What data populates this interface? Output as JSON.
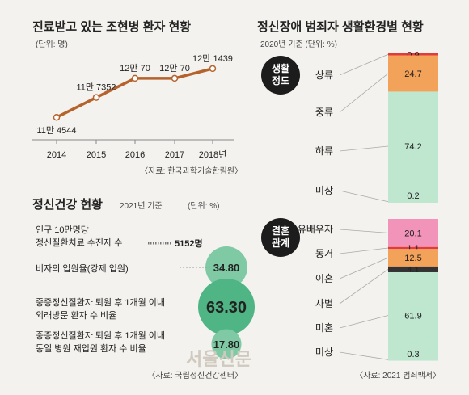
{
  "panel_left_top": {
    "title": "진료받고 있는 조현병 환자 현황",
    "unit": "(단위: 명)",
    "source": "〈자료: 한국과학기술한림원〉"
  },
  "panel_left_bottom": {
    "title": "정신건강 현황",
    "year": "2021년 기준",
    "unit": "(단위: %)",
    "row1_label_1": "인구 10만명당",
    "row1_label_2": "정신질환치료 수진자 수",
    "row1_value": "5152명",
    "row2_label": "비자의 입원율(강제 입원)",
    "row3_label_1": "중증정신질환자 퇴원 후 1개월 이내",
    "row3_label_2": "외래방문 환자 수 비율",
    "row4_label_1": "중증정신질환자 퇴원 후 1개월 이내",
    "row4_label_2": "동일 병원 재입원 환자 수 비율",
    "source": "〈자료: 국립정신건강센터〉"
  },
  "panel_right": {
    "title": "정신장애 범죄자 생활환경별 현황",
    "subtitle": "2020년 기준 (단위: %)",
    "group1": "생활 정도",
    "group2": "결혼 관계",
    "source": "〈자료: 2021 범죄백서〉"
  },
  "watermark": "서울신문",
  "colors": {
    "line": "#b5622c",
    "bubble": "#4fb584",
    "bubble_light": "#7fcaa4",
    "red": "#e23b3b",
    "orange": "#f3a25a",
    "green": "#bfe6cf",
    "pink": "#f294b9",
    "black": "#333333"
  },
  "chart_data": [
    {
      "type": "line",
      "x": [
        "2014",
        "2015",
        "2016",
        "2017",
        "2018년"
      ],
      "values": [
        114544,
        117352,
        120070,
        120070,
        121439
      ],
      "data_labels": [
        "11만 4544",
        "11만 7352",
        "12만 70",
        "12만 70",
        "12만 1439"
      ]
    },
    {
      "type": "bubble",
      "categories": [
        "비자의 입원율(강제 입원)",
        "외래방문 환자 수 비율",
        "동일 병원 재입원 환자 수 비율"
      ],
      "values": [
        34.8,
        63.3,
        17.8
      ],
      "data_labels": [
        "34.80",
        "63.30",
        "17.80"
      ]
    },
    {
      "type": "bar",
      "stacked": true,
      "group": "생활 정도",
      "categories": [
        "상류",
        "중류",
        "하류",
        "미상"
      ],
      "values": [
        0.9,
        24.7,
        74.2,
        0.2
      ],
      "data_labels": [
        "0.9",
        "24.7",
        "74.2",
        "0.2"
      ]
    },
    {
      "type": "bar",
      "stacked": true,
      "group": "결혼 관계",
      "categories": [
        "유배우자",
        "동거",
        "이혼",
        "사별",
        "미혼",
        "미상"
      ],
      "values": [
        20.1,
        1.1,
        12.5,
        4.1,
        61.9,
        0.3
      ],
      "data_labels": [
        "20.1",
        "1.1",
        "12.5",
        "4.1",
        "61.9",
        "0.3"
      ]
    }
  ]
}
